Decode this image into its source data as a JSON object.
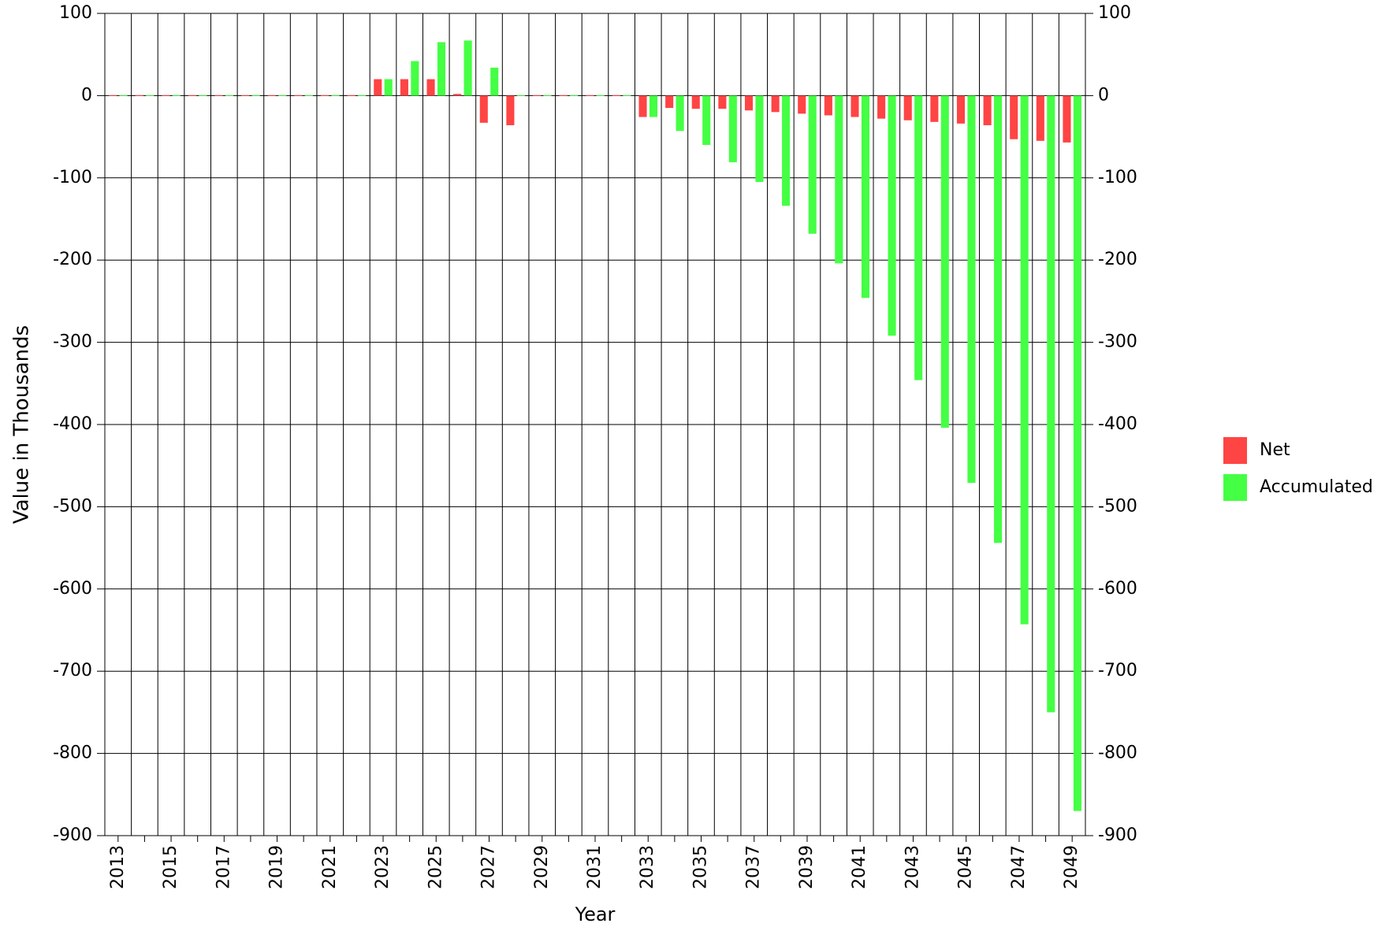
{
  "chart_data": {
    "type": "bar",
    "y_label": "Value in Thousands",
    "x_label": "Year",
    "categories": [
      "2013",
      null,
      "2015",
      null,
      "2017",
      null,
      "2019",
      null,
      "2021",
      null,
      "2023",
      null,
      "2025",
      null,
      "2027",
      null,
      "2029",
      null,
      "2031",
      null,
      "2033",
      null,
      "2035",
      null,
      "2037",
      null,
      "2039",
      null,
      "2041",
      null,
      "2043",
      null,
      "2045",
      null,
      "2047",
      null,
      "2049"
    ],
    "series": [
      {
        "name": "Net",
        "color": "#ff4444",
        "values": [
          0,
          0,
          0,
          0,
          0,
          0,
          0,
          0,
          0,
          0,
          20,
          20,
          20,
          2,
          -33,
          -36,
          0,
          0,
          0,
          0,
          -26,
          -15,
          -16,
          -16,
          -18,
          -20,
          -22,
          -24,
          -26,
          -28,
          -30,
          -32,
          -34,
          -36,
          -53,
          -55,
          -57
        ]
      },
      {
        "name": "Accumulated",
        "color": "#44ff44",
        "values": [
          0,
          0,
          0,
          0,
          0,
          0,
          0,
          0,
          0,
          0,
          20,
          42,
          65,
          67,
          34,
          0,
          0,
          0,
          0,
          0,
          -26,
          -43,
          -60,
          -81,
          -105,
          -134,
          -168,
          -204,
          -246,
          -292,
          -346,
          -404,
          -471,
          -544,
          -643,
          -750,
          -870
        ]
      }
    ],
    "ylim": [
      -900,
      100
    ],
    "yticks": [
      100,
      0,
      -100,
      -200,
      -300,
      -400,
      -500,
      -600,
      -700,
      -800,
      -900
    ],
    "y2lim": [
      -900,
      100
    ],
    "y2ticks": [
      100,
      0,
      -100,
      -200,
      -300,
      -400,
      -500,
      -600,
      -700,
      -800,
      -900
    ],
    "grid": true,
    "legend": "right"
  }
}
